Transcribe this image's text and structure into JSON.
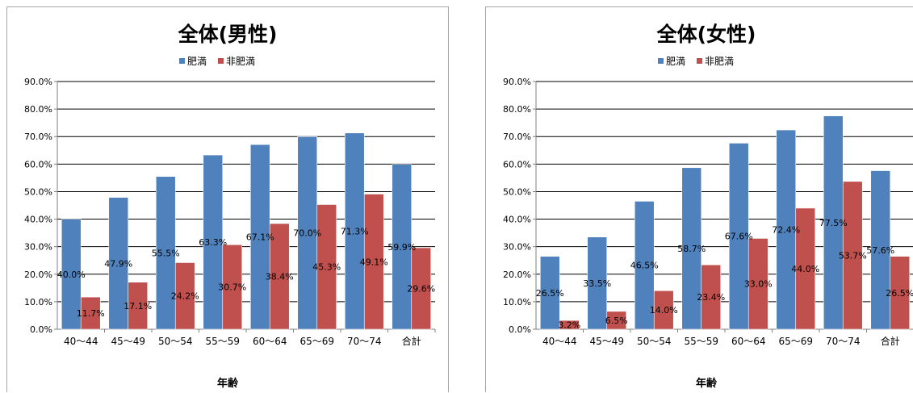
{
  "chart_data": [
    {
      "type": "bar",
      "title": "全体(男性)",
      "xlabel": "年齢",
      "ylabel": "",
      "ylim": [
        0,
        0.9
      ],
      "yticks": [
        "0.0%",
        "10.0%",
        "20.0%",
        "30.0%",
        "40.0%",
        "50.0%",
        "60.0%",
        "70.0%",
        "80.0%",
        "90.0%"
      ],
      "grid": true,
      "legend_position": "top",
      "categories": [
        "40〜44",
        "45〜49",
        "50〜54",
        "55〜59",
        "60〜64",
        "65〜69",
        "70〜74",
        "合計"
      ],
      "series": [
        {
          "name": "肥満",
          "color": "#4f81bd",
          "values": [
            0.4,
            0.479,
            0.555,
            0.633,
            0.671,
            0.7,
            0.713,
            0.599
          ],
          "labels": [
            "40.0%",
            "47.9%",
            "55.5%",
            "63.3%",
            "67.1%",
            "70.0%",
            "71.3%",
            "59.9%"
          ]
        },
        {
          "name": "非肥満",
          "color": "#c0504d",
          "values": [
            0.117,
            0.171,
            0.242,
            0.307,
            0.384,
            0.453,
            0.491,
            0.296
          ],
          "labels": [
            "11.7%",
            "17.1%",
            "24.2%",
            "30.7%",
            "38.4%",
            "45.3%",
            "49.1%",
            "29.6%"
          ]
        }
      ]
    },
    {
      "type": "bar",
      "title": "全体(女性)",
      "xlabel": "年齢",
      "ylabel": "",
      "ylim": [
        0,
        0.9
      ],
      "yticks": [
        "0.0%",
        "10.0%",
        "20.0%",
        "30.0%",
        "40.0%",
        "50.0%",
        "60.0%",
        "70.0%",
        "80.0%",
        "90.0%"
      ],
      "grid": true,
      "legend_position": "top",
      "categories": [
        "40〜44",
        "45〜49",
        "50〜54",
        "55〜59",
        "60〜64",
        "65〜69",
        "70〜74",
        "合計"
      ],
      "series": [
        {
          "name": "肥満",
          "color": "#4f81bd",
          "values": [
            0.265,
            0.335,
            0.465,
            0.587,
            0.676,
            0.724,
            0.775,
            0.576
          ],
          "labels": [
            "26.5%",
            "33.5%",
            "46.5%",
            "58.7%",
            "67.6%",
            "72.4%",
            "77.5%",
            "57.6%"
          ]
        },
        {
          "name": "非肥満",
          "color": "#c0504d",
          "values": [
            0.032,
            0.065,
            0.14,
            0.234,
            0.33,
            0.44,
            0.537,
            0.265
          ],
          "labels": [
            "3.2%",
            "6.5%",
            "14.0%",
            "23.4%",
            "33.0%",
            "44.0%",
            "53.7%",
            "26.5%"
          ]
        }
      ]
    }
  ]
}
